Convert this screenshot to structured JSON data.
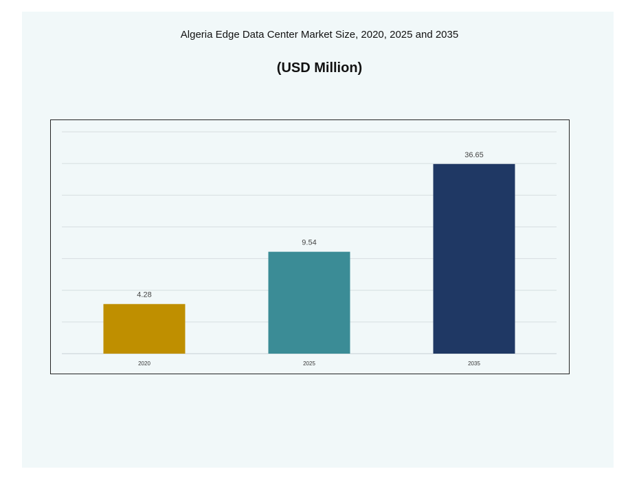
{
  "chart_data": {
    "type": "bar",
    "title": "Algeria Edge Data Center Market Size, 2020, 2025 and 2035",
    "subtitle": "(USD Million)",
    "xlabel": "",
    "ylabel": "",
    "categories": [
      "2020",
      "2025",
      "2035"
    ],
    "values": [
      4.28,
      9.54,
      36.65
    ],
    "data_labels": [
      "4.28",
      "9.54",
      "36.65"
    ],
    "colors": [
      "#bf8f00",
      "#3b8c96",
      "#1f3864"
    ],
    "y_scale": "log",
    "ylim": [
      2,
      60
    ],
    "y_tick_labels_shown": false,
    "grid": true,
    "legend": "none"
  }
}
